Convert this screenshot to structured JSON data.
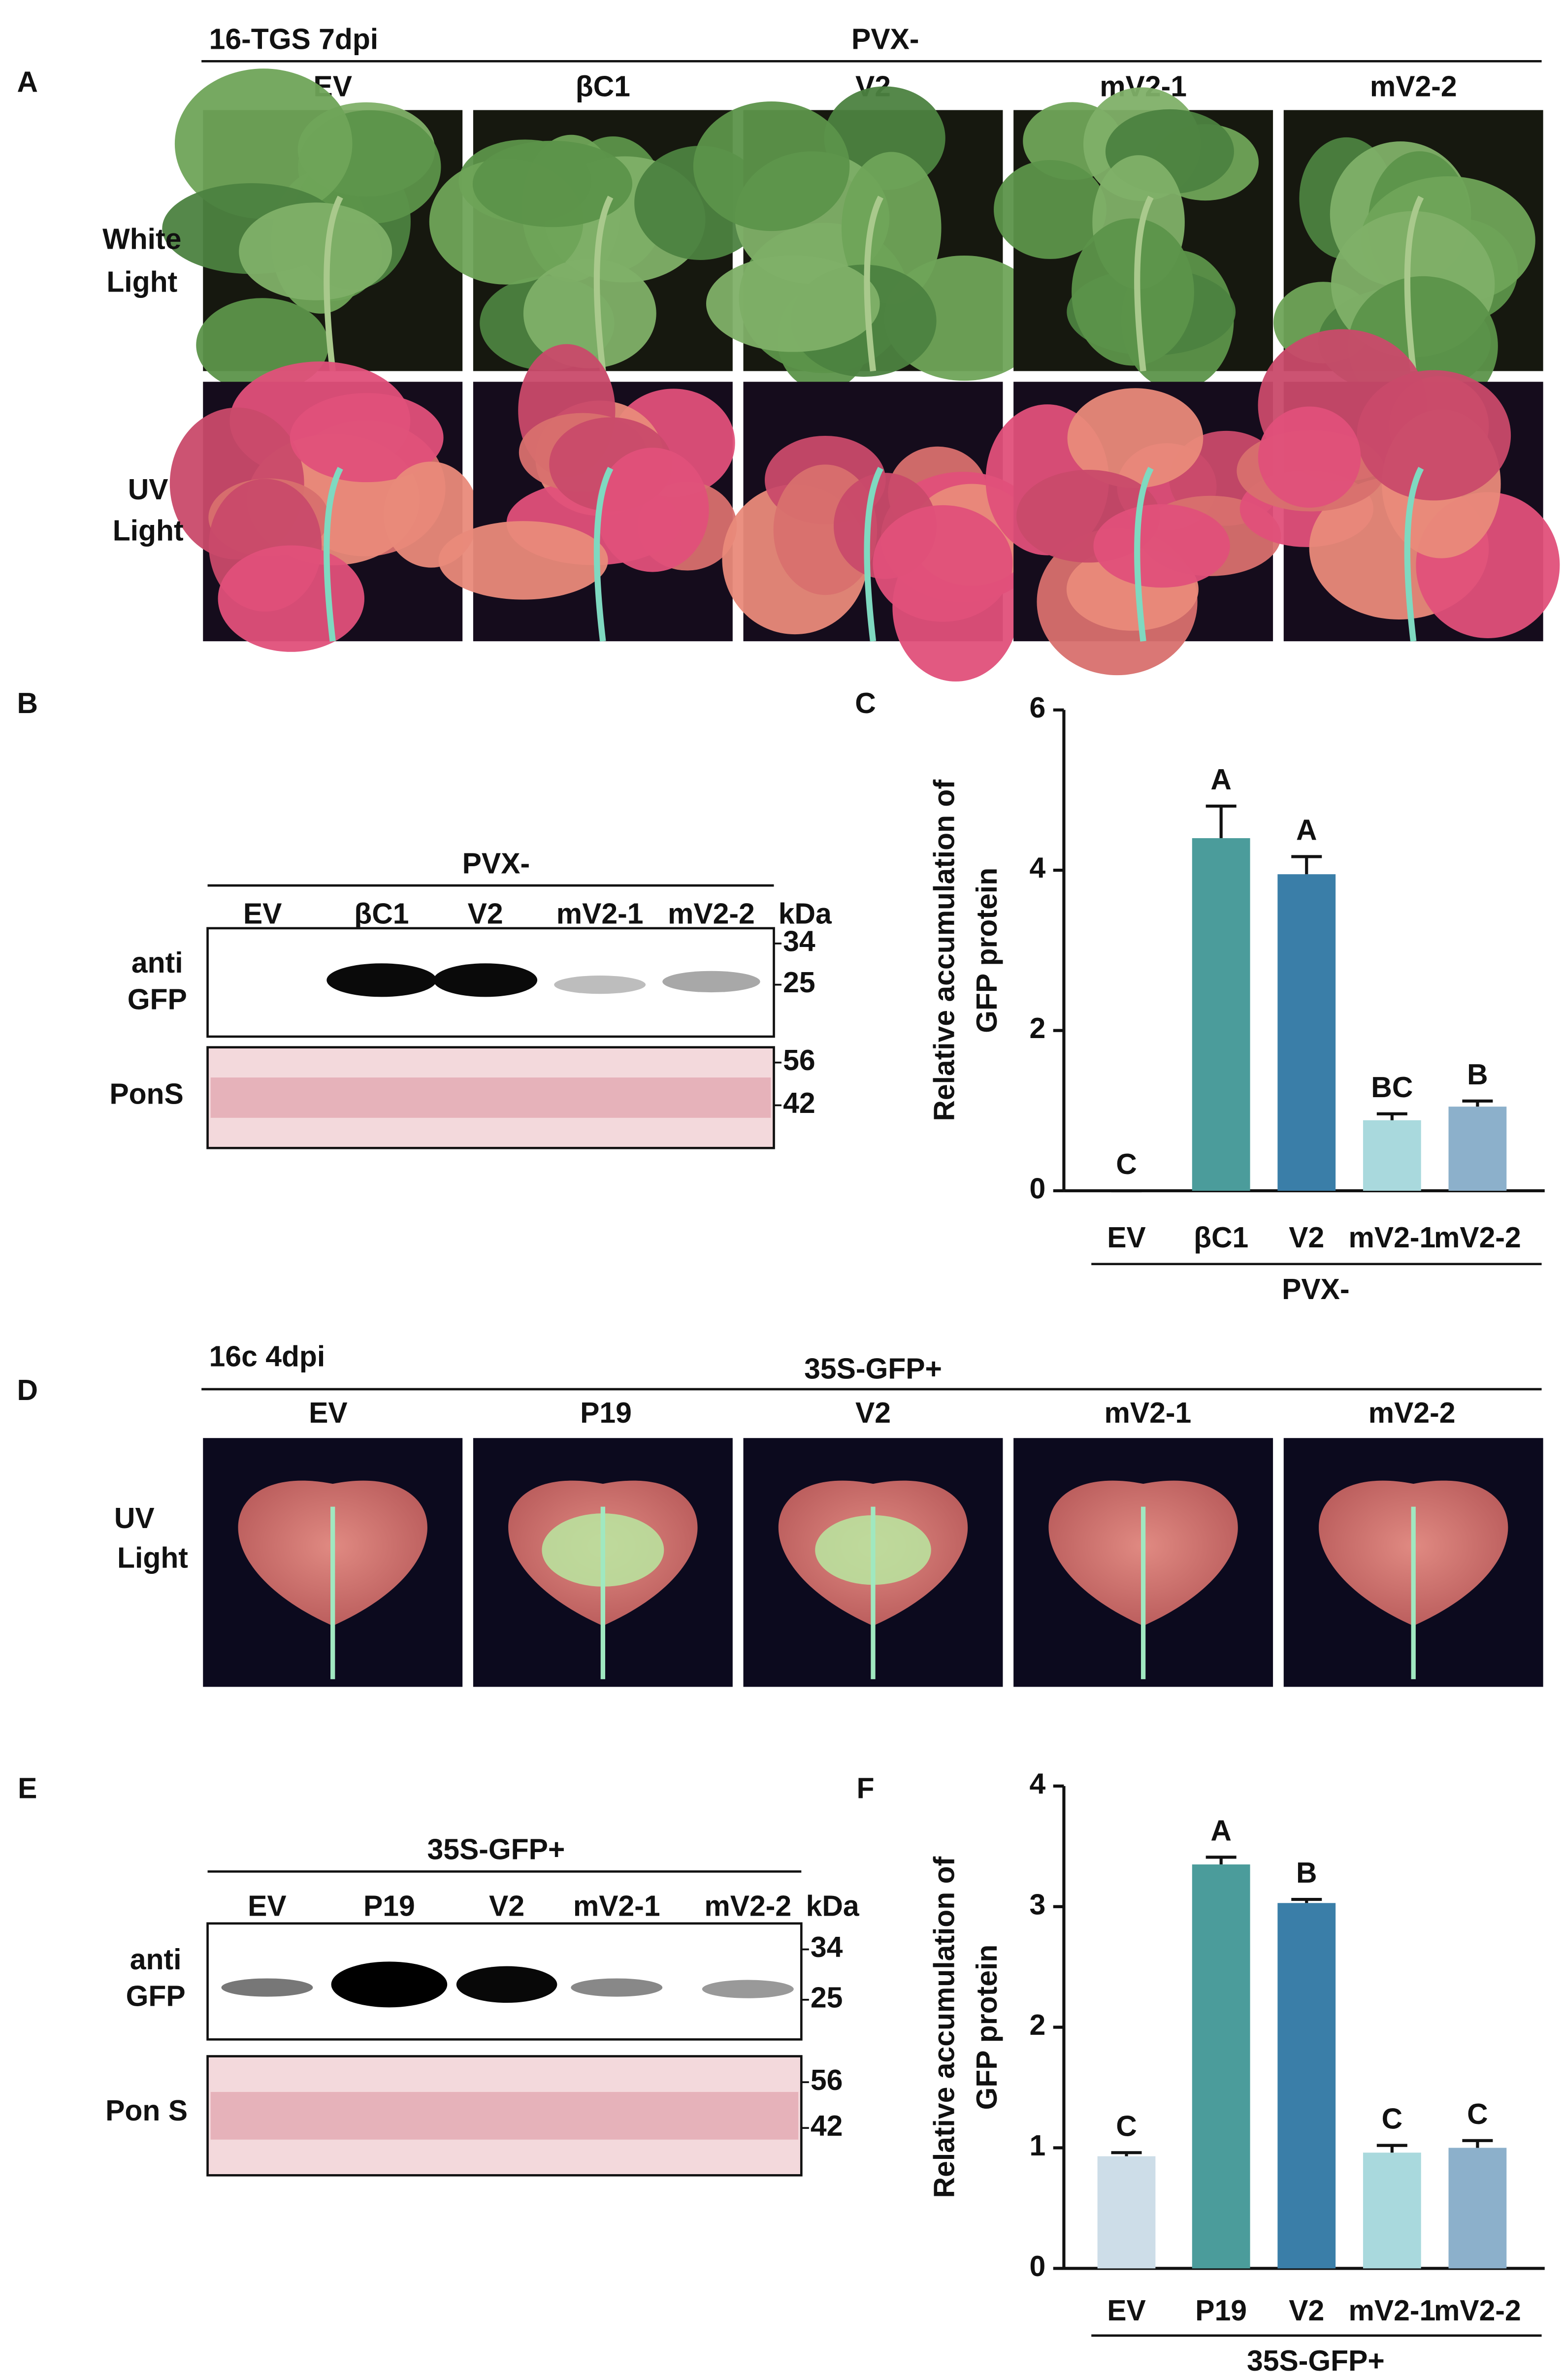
{
  "panel_labels": [
    "A",
    "B",
    "C",
    "D",
    "E",
    "F"
  ],
  "panel_a": {
    "header": "16-TGS 7dpi",
    "group": "PVX-",
    "columns": [
      "EV",
      "βC1",
      "V2",
      "mV2-1",
      "mV2-2"
    ],
    "rows": [
      [
        "White",
        "Light"
      ],
      [
        "UV",
        "Light"
      ]
    ]
  },
  "panel_b": {
    "group": "PVX-",
    "lanes": [
      "EV",
      "βC1",
      "V2",
      "mV2-1",
      "mV2-2"
    ],
    "unit": "kDa",
    "rows": [
      {
        "label": [
          "anti",
          "GFP"
        ],
        "markers": [
          34,
          25
        ]
      },
      {
        "label": [
          "PonS"
        ],
        "markers": [
          56,
          42
        ]
      }
    ]
  },
  "panel_d": {
    "header": "16c 4dpi",
    "group": "35S-GFP+",
    "columns": [
      "EV",
      "P19",
      "V2",
      "mV2-1",
      "mV2-2"
    ],
    "rows": [
      [
        "UV",
        "Light"
      ]
    ]
  },
  "panel_e": {
    "group": "35S-GFP+",
    "lanes": [
      "EV",
      "P19",
      "V2",
      "mV2-1",
      "mV2-2"
    ],
    "unit": "kDa",
    "rows": [
      {
        "label": [
          "anti",
          "GFP"
        ],
        "markers": [
          34,
          25
        ]
      },
      {
        "label": [
          "Pon S"
        ],
        "markers": [
          56,
          42
        ]
      }
    ]
  },
  "chart_data": [
    {
      "type": "bar",
      "y_label": [
        "Relative  accumulation of",
        "GFP protein"
      ],
      "group": "PVX-",
      "categories": [
        "EV",
        "βC1",
        "V2",
        "mV2-1",
        "mV2-2"
      ],
      "values": [
        0,
        4.4,
        3.95,
        0.88,
        1.05
      ],
      "errors": [
        0,
        0.4,
        0.22,
        0.08,
        0.07
      ],
      "letters": [
        "C",
        "A",
        "A",
        "BC",
        "B"
      ],
      "colors": [
        "#d8e6ee",
        "#4b9c9b",
        "#3a7ea8",
        "#a9d9dd",
        "#8cb0cb"
      ],
      "ylim": [
        0,
        6
      ],
      "yticks": [
        0,
        2,
        4,
        6
      ]
    },
    {
      "type": "bar",
      "y_label": [
        "Relative  accumulation of",
        "GFP protein"
      ],
      "group": "35S-GFP+",
      "categories": [
        "EV",
        "P19",
        "V2",
        "mV2-1",
        "mV2-2"
      ],
      "values": [
        0.93,
        3.35,
        3.03,
        0.96,
        1.0
      ],
      "errors": [
        0.03,
        0.06,
        0.03,
        0.06,
        0.06
      ],
      "letters": [
        "C",
        "A",
        "B",
        "C",
        "C"
      ],
      "colors": [
        "#cddde8",
        "#4b9c9b",
        "#3a7ea8",
        "#a9d9dd",
        "#8cb0cb"
      ],
      "ylim": [
        0,
        4
      ],
      "yticks": [
        0,
        1,
        2,
        3,
        4
      ]
    }
  ]
}
